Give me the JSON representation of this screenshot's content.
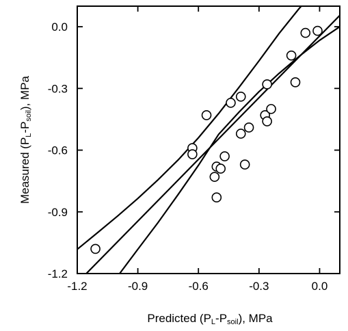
{
  "chart_data": {
    "type": "scatter",
    "title": "",
    "xlabel": {
      "parts": [
        {
          "text": "Predicted (P",
          "sub": false
        },
        {
          "text": "L",
          "sub": true
        },
        {
          "text": "-P",
          "sub": false
        },
        {
          "text": "soil",
          "sub": true
        },
        {
          "text": "), MPa",
          "sub": false
        }
      ]
    },
    "ylabel": {
      "parts": [
        {
          "text": "Measured (P",
          "sub": false
        },
        {
          "text": "L",
          "sub": true
        },
        {
          "text": "-P",
          "sub": false
        },
        {
          "text": "soil",
          "sub": true
        },
        {
          "text": "), MPa",
          "sub": false
        }
      ]
    },
    "xlim": [
      -1.2,
      0.1
    ],
    "ylim": [
      -1.2,
      0.1
    ],
    "x_ticks": [
      -1.2,
      -0.9,
      -0.6,
      -0.3,
      0.0
    ],
    "x_tick_labels": [
      "-1.2",
      "-0.9",
      "-0.6",
      "-0.3",
      "0.0"
    ],
    "y_ticks": [
      -1.2,
      -0.9,
      -0.6,
      -0.3,
      0.0
    ],
    "y_tick_labels": [
      "-1.2",
      "-0.9",
      "-0.6",
      "-0.3",
      "0.0"
    ],
    "grid": false,
    "legend": "none",
    "points": [
      {
        "x": -1.11,
        "y": -1.08
      },
      {
        "x": -0.63,
        "y": -0.59
      },
      {
        "x": -0.63,
        "y": -0.62
      },
      {
        "x": -0.56,
        "y": -0.43
      },
      {
        "x": -0.52,
        "y": -0.73
      },
      {
        "x": -0.51,
        "y": -0.68
      },
      {
        "x": -0.51,
        "y": -0.83
      },
      {
        "x": -0.49,
        "y": -0.69
      },
      {
        "x": -0.47,
        "y": -0.63
      },
      {
        "x": -0.44,
        "y": -0.37
      },
      {
        "x": -0.39,
        "y": -0.34
      },
      {
        "x": -0.39,
        "y": -0.52
      },
      {
        "x": -0.37,
        "y": -0.67
      },
      {
        "x": -0.35,
        "y": -0.49
      },
      {
        "x": -0.26,
        "y": -0.28
      },
      {
        "x": -0.27,
        "y": -0.43
      },
      {
        "x": -0.26,
        "y": -0.46
      },
      {
        "x": -0.24,
        "y": -0.4
      },
      {
        "x": -0.14,
        "y": -0.14
      },
      {
        "x": -0.12,
        "y": -0.27
      },
      {
        "x": -0.07,
        "y": -0.03
      },
      {
        "x": -0.01,
        "y": -0.02
      }
    ],
    "regression_line": {
      "x": [
        -1.2,
        0.1
      ],
      "y": [
        -1.245,
        0.055
      ]
    },
    "confidence_band_upper": {
      "x": [
        -1.2,
        -1.1,
        -1.0,
        -0.9,
        -0.8,
        -0.7,
        -0.6,
        -0.5,
        -0.4,
        -0.3,
        -0.2,
        -0.1,
        0.0,
        0.02
      ],
      "y": [
        -1.082,
        -1.002,
        -0.92,
        -0.835,
        -0.744,
        -0.647,
        -0.54,
        -0.422,
        -0.296,
        -0.166,
        -0.032,
        0.09,
        0.196,
        0.215
      ]
    },
    "confidence_band_lower": {
      "x": [
        -0.99,
        -0.9,
        -0.8,
        -0.7,
        -0.6,
        -0.5,
        -0.4,
        -0.3,
        -0.2,
        -0.1,
        0.0,
        0.1
      ],
      "y": [
        -1.2,
        -1.082,
        -0.952,
        -0.815,
        -0.674,
        -0.523,
        -0.416,
        -0.316,
        -0.226,
        -0.143,
        -0.066,
        0.0
      ]
    }
  }
}
